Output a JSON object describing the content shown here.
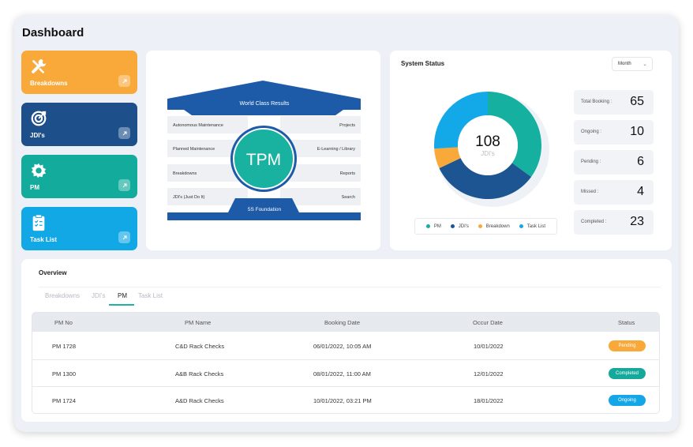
{
  "header": {
    "title": "Dashboard"
  },
  "cards": [
    {
      "label": "Breakdowns",
      "color": "#f9a93a",
      "icon": "tools-icon"
    },
    {
      "label": "JDI's",
      "color": "#1d4f8a",
      "icon": "target-icon"
    },
    {
      "label": "PM",
      "color": "#13ab9b",
      "icon": "gear-icon"
    },
    {
      "label": "Task List",
      "color": "#12a8e6",
      "icon": "clipboard-icon"
    }
  ],
  "tpm": {
    "roof": "World Class Results",
    "center": "TPM",
    "foundation": "5S Foundation",
    "left": [
      "Autonomous Maintenance",
      "Planned Maintenance",
      "Breakdowns",
      "JDI's (Just Do It)"
    ],
    "right": [
      "Projects",
      "E-Learning / Library",
      "Reports",
      "Search"
    ]
  },
  "status": {
    "title": "System Status",
    "period": "Month",
    "center_value": "108",
    "center_label": "JDI's",
    "donut": [
      {
        "name": "PM",
        "value": 35,
        "color": "#15b0a0"
      },
      {
        "name": "JDI's",
        "value": 33,
        "color": "#1d5593"
      },
      {
        "name": "Breakdown",
        "value": 6,
        "color": "#f9a93a"
      },
      {
        "name": "Task List",
        "value": 26,
        "color": "#13a9e8"
      }
    ],
    "legend": [
      {
        "name": "PM",
        "color": "#15b0a0"
      },
      {
        "name": "JDI's",
        "color": "#1d5593"
      },
      {
        "name": "Breakdown",
        "color": "#f9a93a"
      },
      {
        "name": "Task List",
        "color": "#13a9e8"
      }
    ],
    "stats": [
      {
        "label": "Total Booking :",
        "value": "65"
      },
      {
        "label": "Ongoing :",
        "value": "10"
      },
      {
        "label": "Pending :",
        "value": "6"
      },
      {
        "label": "Missed :",
        "value": "4"
      },
      {
        "label": "Completed :",
        "value": "23"
      }
    ]
  },
  "overview": {
    "title": "Overview",
    "tabs": [
      "Breakdowns",
      "JDI's",
      "PM",
      "Task List"
    ],
    "active_tab": "PM",
    "columns": [
      "PM No",
      "PM Name",
      "Booking Date",
      "Occur Date",
      "Status"
    ],
    "rows": [
      {
        "no": "PM 1728",
        "name": "C&D Rack Checks",
        "booking": "06/01/2022, 10:05 AM",
        "occur": "10/01/2022",
        "status": "Pending",
        "status_color": "#f9a93a"
      },
      {
        "no": "PM 1300",
        "name": "A&B Rack Checks",
        "booking": "08/01/2022, 11:00 AM",
        "occur": "12/01/2022",
        "status": "Completed",
        "status_color": "#15a99b"
      },
      {
        "no": "PM 1724",
        "name": "A&D Rack Checks",
        "booking": "10/01/2022, 03:21 PM",
        "occur": "18/01/2022",
        "status": "Ongoing",
        "status_color": "#14a6e6"
      }
    ]
  }
}
